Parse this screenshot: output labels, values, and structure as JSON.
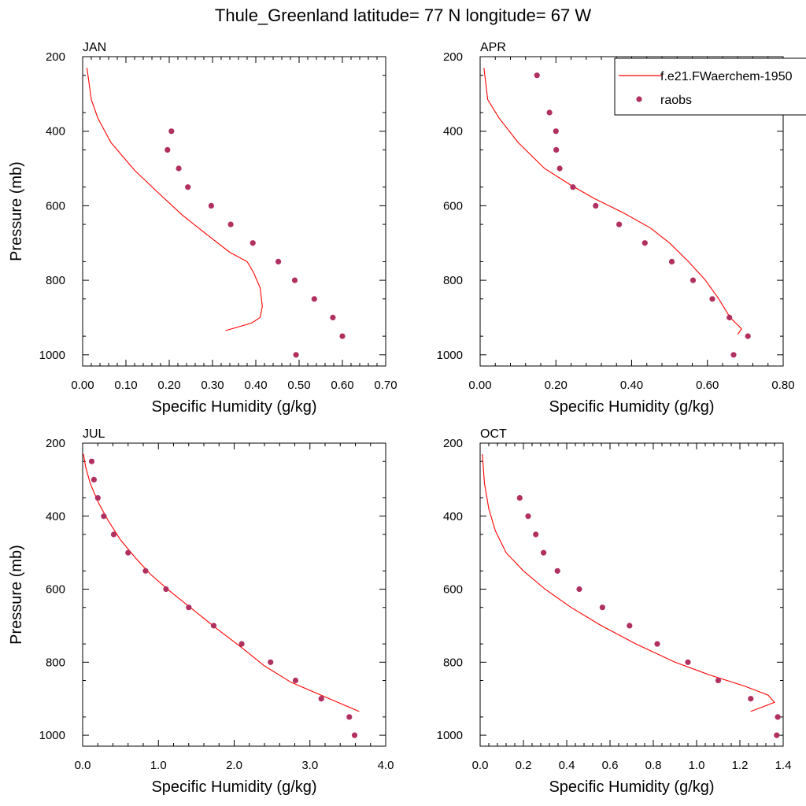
{
  "figure_title": "Thule_Greenland  latitude= 77 N longitude= 67 W",
  "legend": {
    "model_label": "f.e21.FWaerchem-1950",
    "obs_label": "raobs"
  },
  "colors": {
    "model": "#ff0000",
    "obs": "#b03060",
    "axis": "#000000"
  },
  "chart_data": [
    {
      "type": "line",
      "panel_label": "JAN",
      "xlabel": "Specific Humidity (g/kg)",
      "ylabel": "Pressure (mb)",
      "xlim": [
        0,
        0.7
      ],
      "ylim": [
        200,
        1030
      ],
      "y_reversed": true,
      "xticks": [
        0,
        0.1,
        0.2,
        0.3,
        0.4,
        0.5,
        0.6,
        0.7
      ],
      "xtick_labels": [
        "0.00",
        "0.10",
        "0.20",
        "0.30",
        "0.40",
        "0.50",
        "0.60",
        "0.70"
      ],
      "yticks": [
        200,
        400,
        600,
        800,
        1000
      ],
      "ytick_labels": [
        "200",
        "400",
        "600",
        "800",
        "1000"
      ],
      "series": [
        {
          "name": "f.e21.FWaerchem-1950",
          "kind": "line",
          "x": [
            0.33,
            0.39,
            0.41,
            0.415,
            0.41,
            0.395,
            0.38,
            0.34,
            0.29,
            0.23,
            0.17,
            0.12,
            0.065,
            0.035,
            0.02,
            0.01
          ],
          "y": [
            935,
            915,
            900,
            870,
            820,
            780,
            750,
            725,
            680,
            625,
            560,
            505,
            430,
            365,
            315,
            230
          ]
        },
        {
          "name": "raobs",
          "kind": "scatter",
          "x": [
            0.205,
            0.196,
            0.222,
            0.243,
            0.297,
            0.342,
            0.393,
            0.452,
            0.49,
            0.535,
            0.578,
            0.6,
            0.493
          ],
          "y": [
            400,
            450,
            500,
            550,
            600,
            650,
            700,
            750,
            800,
            850,
            900,
            950,
            1000
          ]
        }
      ]
    },
    {
      "type": "line",
      "panel_label": "APR",
      "xlabel": "Specific Humidity (g/kg)",
      "ylabel": "",
      "xlim": [
        0,
        0.8
      ],
      "ylim": [
        200,
        1030
      ],
      "y_reversed": true,
      "xticks": [
        0,
        0.2,
        0.4,
        0.6,
        0.8
      ],
      "xtick_labels": [
        "0.00",
        "0.20",
        "0.40",
        "0.60",
        "0.80"
      ],
      "yticks": [
        200,
        400,
        600,
        800,
        1000
      ],
      "ytick_labels": [
        "200",
        "400",
        "600",
        "800",
        "1000"
      ],
      "series": [
        {
          "name": "f.e21.FWaerchem-1950",
          "kind": "line",
          "x": [
            0.68,
            0.69,
            0.66,
            0.63,
            0.595,
            0.55,
            0.5,
            0.45,
            0.38,
            0.3,
            0.24,
            0.17,
            0.1,
            0.05,
            0.02,
            0.01
          ],
          "y": [
            945,
            930,
            900,
            850,
            800,
            750,
            700,
            660,
            620,
            580,
            545,
            500,
            430,
            365,
            315,
            230
          ]
        },
        {
          "name": "raobs",
          "kind": "scatter",
          "x": [
            0.15,
            0.183,
            0.2,
            0.201,
            0.21,
            0.245,
            0.305,
            0.367,
            0.435,
            0.506,
            0.562,
            0.613,
            0.658,
            0.707,
            0.669
          ],
          "y": [
            250,
            350,
            400,
            450,
            500,
            550,
            600,
            650,
            700,
            750,
            800,
            850,
            900,
            950,
            1000
          ]
        }
      ]
    },
    {
      "type": "line",
      "panel_label": "JUL",
      "xlabel": "Specific Humidity (g/kg)",
      "ylabel": "Pressure (mb)",
      "xlim": [
        0,
        4.0
      ],
      "ylim": [
        200,
        1030
      ],
      "y_reversed": true,
      "xticks": [
        0,
        1,
        2,
        3,
        4
      ],
      "xtick_labels": [
        "0.0",
        "1.0",
        "2.0",
        "3.0",
        "4.0"
      ],
      "yticks": [
        200,
        400,
        600,
        800,
        1000
      ],
      "ytick_labels": [
        "200",
        "400",
        "600",
        "800",
        "1000"
      ],
      "series": [
        {
          "name": "f.e21.FWaerchem-1950",
          "kind": "line",
          "x": [
            3.65,
            3.2,
            2.75,
            2.4,
            2.1,
            1.75,
            1.45,
            1.15,
            0.9,
            0.7,
            0.5,
            0.33,
            0.2,
            0.1,
            0.04,
            0.01
          ],
          "y": [
            935,
            895,
            855,
            810,
            760,
            705,
            655,
            605,
            560,
            515,
            465,
            410,
            360,
            310,
            265,
            230
          ]
        },
        {
          "name": "raobs",
          "kind": "scatter",
          "x": [
            0.12,
            0.15,
            0.2,
            0.28,
            0.41,
            0.6,
            0.83,
            1.1,
            1.4,
            1.73,
            2.1,
            2.48,
            2.81,
            3.15,
            3.52,
            3.59
          ],
          "y": [
            250,
            300,
            350,
            400,
            450,
            500,
            550,
            600,
            650,
            700,
            750,
            800,
            850,
            900,
            950,
            1000
          ]
        }
      ]
    },
    {
      "type": "line",
      "panel_label": "OCT",
      "xlabel": "Specific Humidity (g/kg)",
      "ylabel": "",
      "xlim": [
        0,
        1.4
      ],
      "ylim": [
        200,
        1030
      ],
      "y_reversed": true,
      "xticks": [
        0,
        0.2,
        0.4,
        0.6,
        0.8,
        1.0,
        1.2,
        1.4
      ],
      "xtick_labels": [
        "0.0",
        "0.2",
        "0.4",
        "0.6",
        "0.8",
        "1.0",
        "1.2",
        "1.4"
      ],
      "yticks": [
        200,
        400,
        600,
        800,
        1000
      ],
      "ytick_labels": [
        "200",
        "400",
        "600",
        "800",
        "1000"
      ],
      "series": [
        {
          "name": "f.e21.FWaerchem-1950",
          "kind": "line",
          "x": [
            1.25,
            1.36,
            1.33,
            1.22,
            1.06,
            0.9,
            0.72,
            0.56,
            0.42,
            0.3,
            0.2,
            0.12,
            0.07,
            0.04,
            0.02,
            0.01
          ],
          "y": [
            935,
            910,
            890,
            865,
            835,
            800,
            750,
            700,
            650,
            600,
            550,
            500,
            440,
            380,
            310,
            230
          ]
        },
        {
          "name": "raobs",
          "kind": "scatter",
          "x": [
            0.183,
            0.222,
            0.257,
            0.293,
            0.357,
            0.458,
            0.565,
            0.69,
            0.818,
            0.96,
            1.1,
            1.25,
            1.375,
            1.37
          ],
          "y": [
            350,
            400,
            450,
            500,
            550,
            600,
            650,
            700,
            750,
            800,
            850,
            900,
            950,
            1000
          ]
        }
      ]
    }
  ]
}
